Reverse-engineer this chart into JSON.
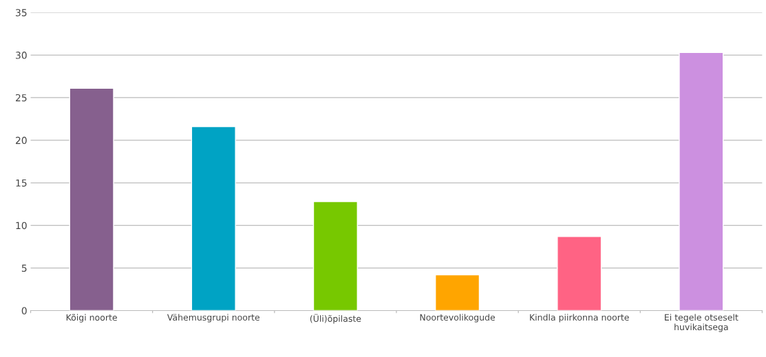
{
  "chart_data": {
    "type": "bar",
    "categories": [
      "Kõigi noorte",
      "Vähemusgrupi noorte",
      "(Üli)õpilaste",
      "Noortevolikogude",
      "Kindla piirkonna noorte",
      "Ei tegele otseselt huvikaitsega"
    ],
    "values": [
      26.1,
      21.6,
      12.8,
      4.2,
      8.7,
      30.3
    ],
    "colors": [
      "#86608e",
      "#00a3c4",
      "#77c800",
      "#ffa500",
      "#ff6384",
      "#cc90e0"
    ],
    "ylim": [
      0,
      35
    ],
    "yticks": [
      0,
      5,
      10,
      15,
      20,
      25,
      30,
      35
    ],
    "grid": "y"
  }
}
